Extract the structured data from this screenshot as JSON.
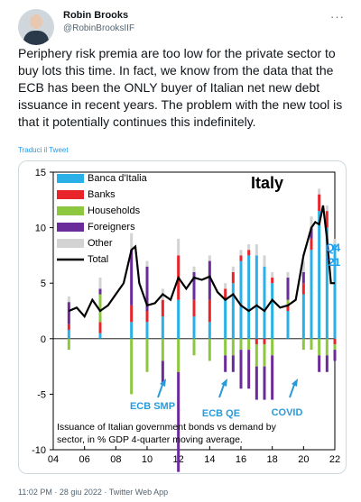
{
  "author": {
    "name": "Robin Brooks",
    "handle": "@RobinBrooksIIF",
    "more_icon": "more-horizontal-icon"
  },
  "tweet": {
    "text": "Periphery risk premia are too low for the private sector to buy lots this time. In fact, we know from the data that the ECB has been the ONLY buyer of Italian net new debt issuance in recent years. The problem with the new tool is that it potentially continues this indefinitely.",
    "translate_label": "Traduci il Tweet"
  },
  "footer": {
    "meta": "11:02 PM · 28 giu 2022 · Twitter Web App"
  },
  "colors": {
    "banca": "#29b0e6",
    "banks": "#e8242a",
    "households": "#8dc63f",
    "foreigners": "#6a2c9a",
    "other": "#d3d3d3",
    "total": "#000000",
    "annotation": "#2a9bd6"
  },
  "chart_data": {
    "type": "bar",
    "title": "Italy",
    "quarter_label": "Q4 '21",
    "caption": "Issuance of Italian government bonds vs demand by sector, in % GDP 4-quarter moving average.",
    "legend": [
      "Banca d'Italia",
      "Banks",
      "Households",
      "Foreigners",
      "Other",
      "Total"
    ],
    "legend_position": "top-left",
    "x_ticks": [
      "04",
      "06",
      "08",
      "10",
      "12",
      "14",
      "16",
      "18",
      "20",
      "22"
    ],
    "x_range": [
      2004,
      2022
    ],
    "y_ticks": [
      "15",
      "10",
      "5",
      "0",
      "-5",
      "-10"
    ],
    "ylim": [
      -10,
      15
    ],
    "annotations": [
      "ECB SMP",
      "ECB QE",
      "COVID"
    ],
    "series": [
      {
        "name": "Total",
        "x": [
          2005,
          2005.5,
          2006,
          2006.5,
          2007,
          2007.5,
          2008,
          2008.5,
          2009,
          2009.25,
          2009.5,
          2010,
          2010.5,
          2011,
          2011.5,
          2012,
          2012.5,
          2013,
          2013.5,
          2014,
          2014.5,
          2015,
          2015.5,
          2016,
          2016.5,
          2017,
          2017.5,
          2018,
          2018.5,
          2019,
          2019.5,
          2020,
          2020.5,
          2020.75,
          2021,
          2021.25,
          2021.5,
          2021.75,
          2022
        ],
        "values": [
          2.5,
          2.8,
          2,
          3.5,
          2.5,
          3,
          4,
          5,
          8,
          8.3,
          5,
          3,
          3.2,
          4,
          3.5,
          5.5,
          4.5,
          5.5,
          5.3,
          5.6,
          4.2,
          3.5,
          4,
          3,
          2.5,
          3,
          2.5,
          3.5,
          2.8,
          3,
          3.5,
          7.5,
          10,
          10.5,
          10.3,
          12,
          9,
          5,
          5
        ]
      },
      {
        "name": "Banca d'Italia",
        "x": [
          2005,
          2007,
          2009,
          2010,
          2011,
          2012,
          2013,
          2014,
          2015,
          2015.5,
          2016,
          2016.5,
          2017,
          2017.5,
          2018,
          2019,
          2020,
          2020.5,
          2021,
          2021.5,
          2022
        ],
        "values": [
          0.8,
          0.5,
          1.5,
          1.5,
          2,
          3.5,
          2,
          1.5,
          3.5,
          5,
          7,
          7.5,
          7.5,
          6.5,
          5,
          2.5,
          4,
          8,
          11.5,
          10,
          8.5
        ]
      },
      {
        "name": "Banks",
        "x": [
          2005,
          2007,
          2009,
          2010,
          2011,
          2012,
          2013,
          2014,
          2015,
          2016,
          2017,
          2018,
          2019,
          2020,
          2021,
          2022
        ],
        "values": [
          0.5,
          1,
          1.5,
          1,
          1.5,
          4,
          1.5,
          2,
          1,
          0.5,
          -0.5,
          0.5,
          0.5,
          1,
          1.5,
          -0.5
        ]
      },
      {
        "name": "Households",
        "x": [
          2005,
          2007,
          2009,
          2010,
          2011,
          2012,
          2013,
          2014,
          2015,
          2016,
          2017,
          2018,
          2019,
          2020,
          2021,
          2022
        ],
        "values": [
          -1,
          2.5,
          -5,
          -3,
          -2,
          -3,
          -1.5,
          -2,
          -1.5,
          -1,
          -2,
          -1.5,
          0.5,
          -1,
          -1.5,
          -0.5
        ]
      },
      {
        "name": "Foreigners",
        "x": [
          2005,
          2007,
          2009,
          2010,
          2011,
          2012,
          2013,
          2014,
          2015,
          2016,
          2017,
          2018,
          2019,
          2020,
          2021,
          2022
        ],
        "values": [
          2,
          0.5,
          5,
          4,
          -2,
          -9,
          2.5,
          3.5,
          -1.5,
          -3.5,
          -3,
          -4,
          2,
          1,
          -1.5,
          -1
        ]
      },
      {
        "name": "Other",
        "x": [
          2005,
          2007,
          2009,
          2010,
          2011,
          2012,
          2013,
          2014,
          2015,
          2016,
          2017,
          2018,
          2019,
          2020,
          2021,
          2022
        ],
        "values": [
          0.5,
          1,
          1.5,
          0.5,
          1,
          1.5,
          0.5,
          0.5,
          0.5,
          0.5,
          1,
          0.5,
          0.5,
          1,
          0.5,
          0.5
        ]
      }
    ]
  }
}
